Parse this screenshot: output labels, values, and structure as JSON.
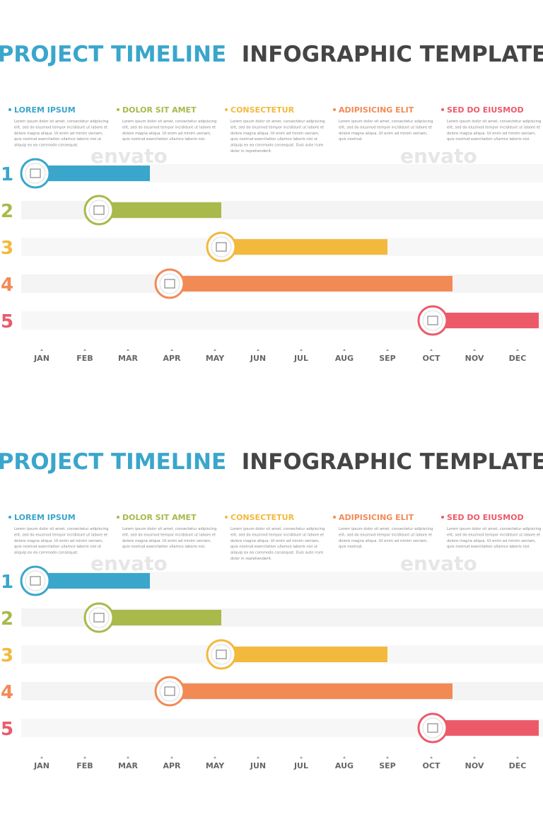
{
  "header": {
    "title_part1": "PROJECT TIMELINE",
    "title_part2": "INFOGRAPHIC TEMPLATE"
  },
  "legend": [
    {
      "title": "LOREM IPSUM",
      "lines": [
        "Lorem ipsum dolor sit amet, consectetur adipiscing",
        "elit, sed do eiusmod tempor incididunt ut labore et",
        "dolore magna aliqua. Ut enim ad minim veniam,",
        "quis nostrud exercitation ullamco laboris nisi ut",
        "aliquip ex ea commodo consequat."
      ]
    },
    {
      "title": "DOLOR SIT AMET",
      "lines": [
        "Lorem ipsum dolor sit amet, consectetur adipiscing",
        "elit, sed do eiusmod tempor incididunt ut labore et",
        "dolore magna aliqua. Ut enim ad minim veniam,",
        "quis nostrud exercitation ullamco laboris nisi."
      ]
    },
    {
      "title": "CONSECTETUR",
      "lines": [
        "Lorem ipsum dolor sit amet, consectetur adipiscing",
        "elit, sed do eiusmod tempor incididunt ut labore et",
        "dolore magna aliqua. Ut enim ad minim veniam,",
        "quis nostrud exercitation ullamco laboris nisi ut",
        "aliquip ex ea commodo consequat. Duis aute irure",
        "dolor in reprehenderit."
      ]
    },
    {
      "title": "ADIPISICING ELIT",
      "lines": [
        "Lorem ipsum dolor sit amet, consectetur adipiscing",
        "elit, sed do eiusmod tempor incididunt ut labore et",
        "dolore magna aliqua. Ut enim ad minim veniam,",
        "quis nostrud."
      ]
    },
    {
      "title": "SED DO EIUSMOD",
      "lines": [
        "Lorem ipsum dolor sit amet, consectetur adipiscing",
        "elit, sed do eiusmod tempor incididunt ut labore et",
        "dolore magna aliqua. Ut enim ad minim veniam,",
        "quis nostrud exercitation ullamco laboris nisi."
      ]
    }
  ],
  "rows": [
    1,
    2,
    3,
    4,
    5
  ],
  "months": [
    "JAN",
    "FEB",
    "MAR",
    "APR",
    "MAY",
    "JUN",
    "JUL",
    "AUG",
    "SEP",
    "OCT",
    "NOV",
    "DEC"
  ],
  "watermark": "envato"
}
